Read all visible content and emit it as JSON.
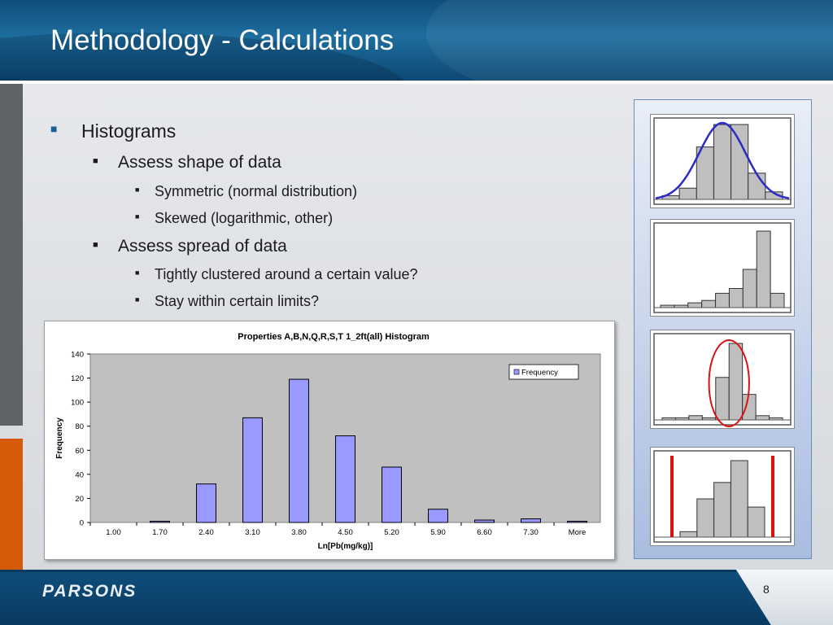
{
  "slide": {
    "title": "Methodology - Calculations",
    "page_number": "8",
    "logo_text": "PARSONS",
    "accent": "#1a5f96",
    "header_color": "#1d6d9e",
    "orange": "#d55a0a"
  },
  "bullets": [
    {
      "level": 1,
      "text": "Histograms"
    },
    {
      "level": 2,
      "text": "Assess shape of data"
    },
    {
      "level": 3,
      "text": "Symmetric (normal distribution)"
    },
    {
      "level": 3,
      "text": "Skewed (logarithmic, other)"
    },
    {
      "level": 2,
      "text": "Assess spread of data"
    },
    {
      "level": 3,
      "text": "Tightly clustered around a certain value?"
    },
    {
      "level": 3,
      "text": "Stay within certain limits?"
    }
  ],
  "chart_data": [
    {
      "type": "bar",
      "title": "Properties A,B,N,Q,R,S,T 1_2ft(all) Histogram",
      "xlabel": "Ln[Pb(mg/kg)]",
      "ylabel": "Frequency",
      "ylim": [
        0,
        140
      ],
      "yticks": [
        "0",
        "20",
        "40",
        "60",
        "80",
        "100",
        "120",
        "140"
      ],
      "categories": [
        "1.00",
        "1.70",
        "2.40",
        "3.10",
        "3.80",
        "4.50",
        "5.20",
        "5.90",
        "6.60",
        "7.30",
        "More"
      ],
      "series": [
        {
          "name": "Frequency",
          "values": [
            0,
            1,
            32,
            87,
            119,
            72,
            46,
            11,
            2,
            3,
            1
          ],
          "color": "#9999ff"
        }
      ],
      "legend": "top-right",
      "plot_background": "#c0c0c0",
      "grid": false
    },
    {
      "type": "bar",
      "values": [
        2,
        6,
        28,
        40,
        40,
        14,
        4
      ],
      "overlay": "normal-curve",
      "overlay_color": "#2b2bc8"
    },
    {
      "type": "bar",
      "values": [
        1,
        1,
        2,
        3,
        6,
        8,
        16,
        32,
        6
      ]
    },
    {
      "type": "bar",
      "values": [
        1,
        1,
        2,
        1,
        20,
        36,
        12,
        2,
        1
      ],
      "annotation": "red-ellipse"
    },
    {
      "type": "bar",
      "values": [
        2,
        14,
        20,
        28,
        11
      ],
      "annotation": "red-limit-lines"
    }
  ]
}
